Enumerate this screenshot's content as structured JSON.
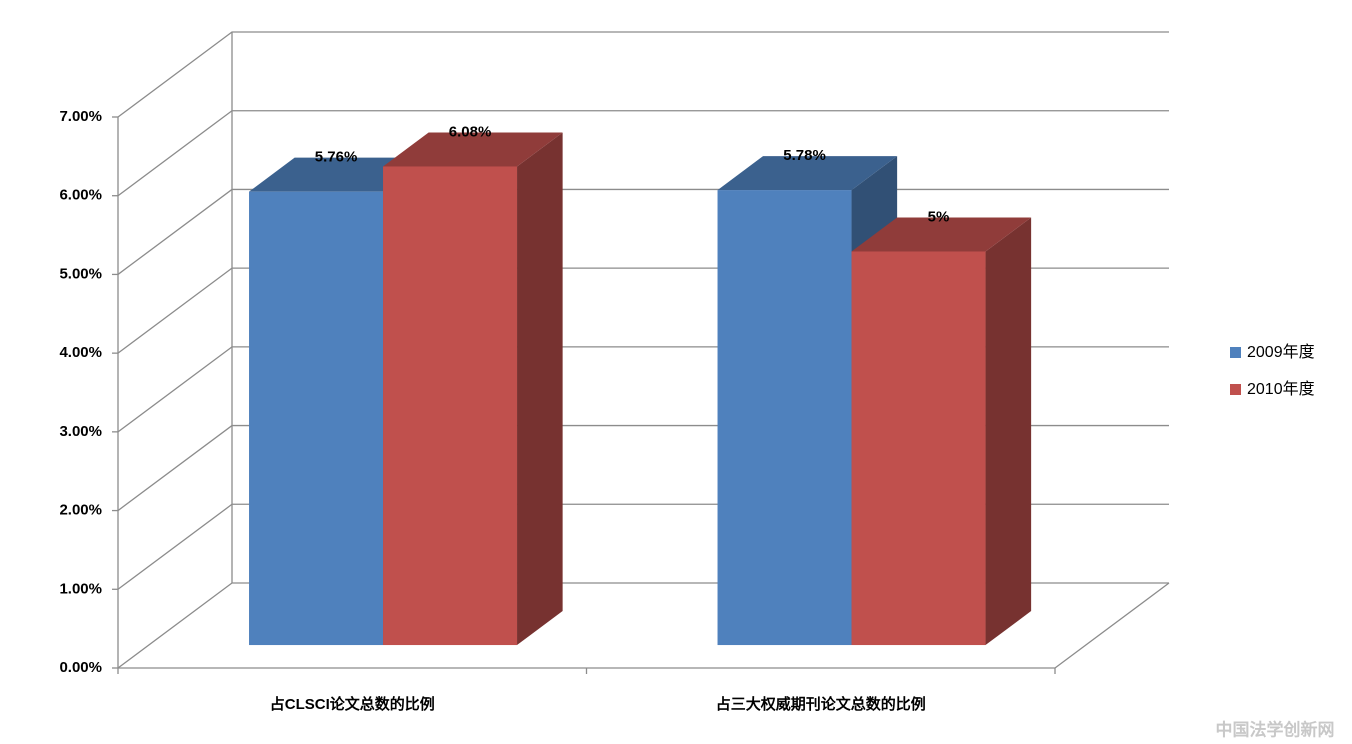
{
  "chart_data": {
    "type": "bar3d",
    "categories": [
      "占CLSCI论文总数的比例",
      "占三大权威期刊论文总数的比例"
    ],
    "series": [
      {
        "name": "2009年度",
        "color": "#4f81bd",
        "values": [
          5.76,
          5.78
        ],
        "value_labels": [
          "5.76%",
          "5.78%"
        ]
      },
      {
        "name": "2010年度",
        "color": "#c0504d",
        "values": [
          6.08,
          5
        ],
        "value_labels": [
          "6.08%",
          "5%"
        ]
      }
    ],
    "ylim": [
      0,
      7
    ],
    "yticks": [
      {
        "value": 0,
        "label": "0.00%"
      },
      {
        "value": 1,
        "label": "1.00%"
      },
      {
        "value": 2,
        "label": "2.00%"
      },
      {
        "value": 3,
        "label": "3.00%"
      },
      {
        "value": 4,
        "label": "4.00%"
      },
      {
        "value": 5,
        "label": "5.00%"
      },
      {
        "value": 6,
        "label": "6.00%"
      },
      {
        "value": 7,
        "label": "7.00%"
      }
    ],
    "grid": true,
    "legend": "right"
  },
  "watermark": "中国法学创新网"
}
